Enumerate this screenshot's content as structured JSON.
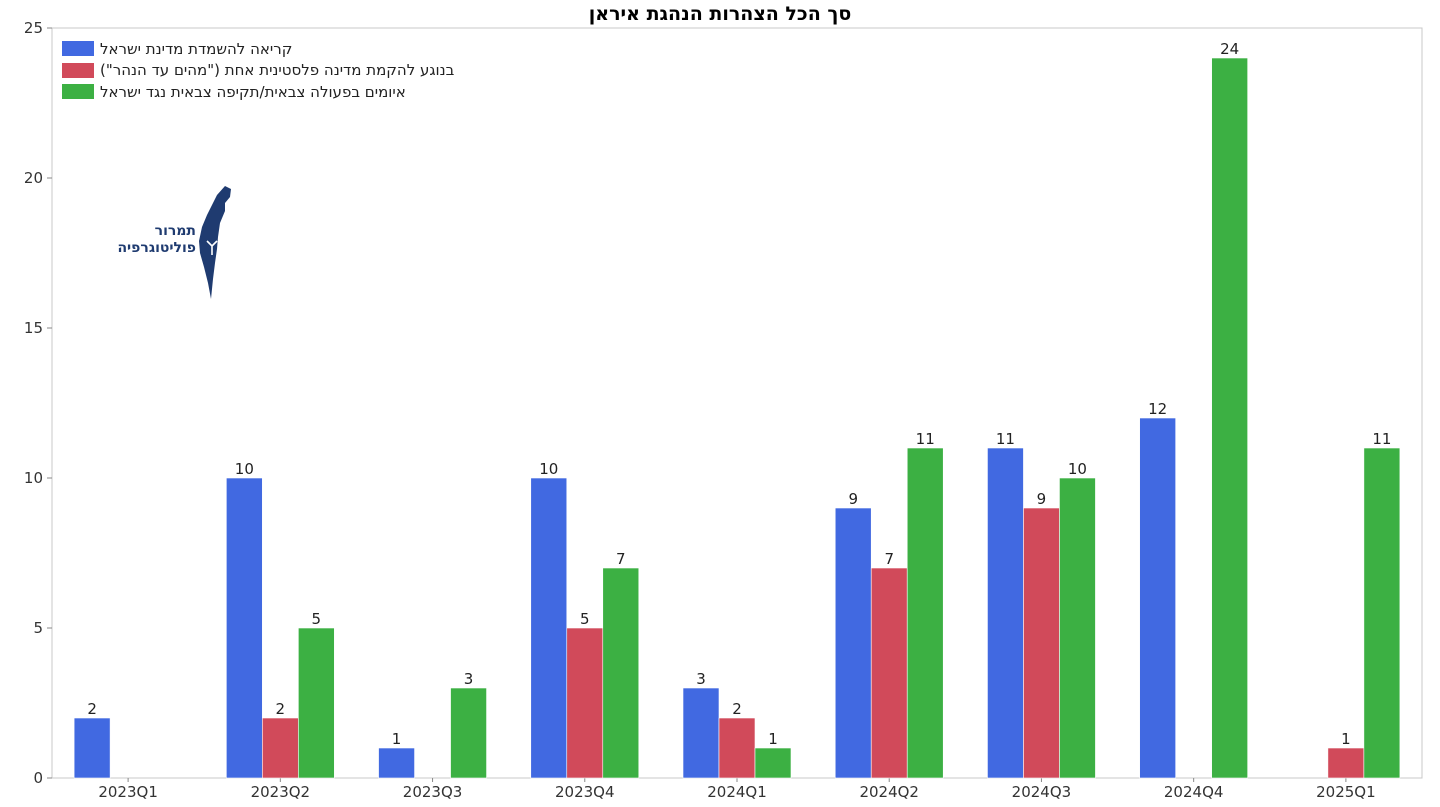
{
  "chart_data": {
    "type": "bar",
    "title": "סך הכל הצהרות הנהגת איראן",
    "categories": [
      "2023Q1",
      "2023Q2",
      "2023Q3",
      "2023Q4",
      "2024Q1",
      "2024Q2",
      "2024Q3",
      "2024Q4",
      "2025Q1"
    ],
    "series": [
      {
        "name": "קריאה להשמדת מדינת ישראל",
        "color": "#4169e1",
        "values": [
          2,
          10,
          1,
          10,
          3,
          9,
          11,
          12,
          null
        ]
      },
      {
        "name": "בנוגע להקמת מדינה פלסטינית אחת (\"מהים עד הנהר\")",
        "color": "#d14a5a",
        "values": [
          null,
          2,
          null,
          5,
          2,
          7,
          9,
          null,
          1
        ]
      },
      {
        "name": "איומים בפעולה צבאית/תקיפה צבאית נגד ישראל",
        "color": "#3cb043",
        "values": [
          null,
          5,
          3,
          7,
          1,
          11,
          10,
          24,
          11
        ]
      }
    ],
    "ylim": [
      0,
      25
    ],
    "yticks": [
      0,
      5,
      10,
      15,
      20,
      25
    ],
    "xlabel": "",
    "ylabel": "",
    "grid": false,
    "legend_position": "top-left"
  },
  "logo": {
    "line1": "תמרור",
    "line2": "פוליטוגרפיה",
    "color": "#1f3b70"
  }
}
